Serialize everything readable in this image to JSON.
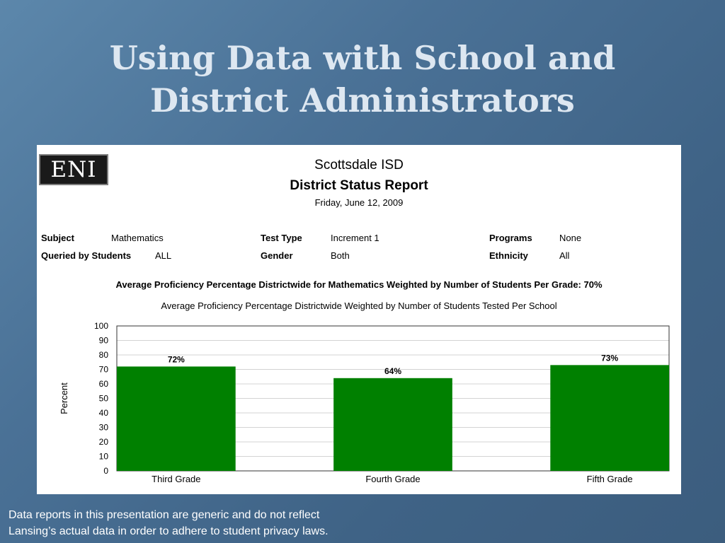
{
  "slide": {
    "title_line1": "Using Data with School and",
    "title_line2": "District Administrators",
    "footnote_line1": "Data reports in this presentation are generic and do not reflect",
    "footnote_line2": "Lansing’s actual data in order to adhere to student privacy laws."
  },
  "report": {
    "logo_text": "ENI",
    "organization": "Scottsdale ISD",
    "title": "District Status Report",
    "date": "Friday, June 12, 2009",
    "fields": {
      "subject_label": "Subject",
      "subject_value": "Mathematics",
      "test_type_label": "Test Type",
      "test_type_value": "Increment 1",
      "programs_label": "Programs",
      "programs_value": "None",
      "queried_label": "Queried by Students",
      "queried_value": "ALL",
      "gender_label": "Gender",
      "gender_value": "Both",
      "ethnicity_label": "Ethnicity",
      "ethnicity_value": "All"
    },
    "average_headline": "Average Proficiency Percentage Districtwide for Mathematics Weighted by Number of Students Per Grade: 70%"
  },
  "chart_data": {
    "type": "bar",
    "title": "Average Proficiency Percentage Districtwide Weighted by Number of Students Tested Per School",
    "categories": [
      "Third Grade",
      "Fourth Grade",
      "Fifth Grade"
    ],
    "values": [
      72,
      64,
      73
    ],
    "data_labels": [
      "72%",
      "64%",
      "73%"
    ],
    "xlabel": "",
    "ylabel": "Percent",
    "ylim": [
      0,
      100
    ],
    "yticks": [
      0,
      10,
      20,
      30,
      40,
      50,
      60,
      70,
      80,
      90,
      100
    ],
    "grid": true,
    "bar_color": "#008000"
  }
}
